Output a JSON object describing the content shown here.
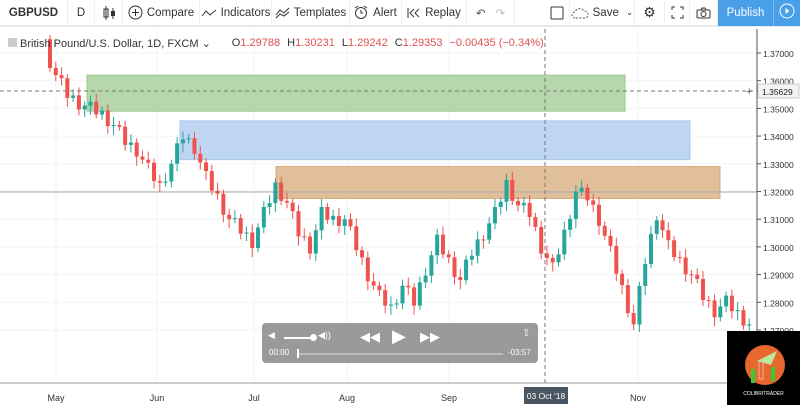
{
  "toolbar": {
    "symbol": "GBPUSD",
    "interval": "D",
    "compare": "Compare",
    "indicators": "Indicators",
    "templates": "Templates",
    "alert": "Alert",
    "replay": "Replay",
    "save": "Save",
    "publish": "Publish"
  },
  "legend": {
    "title": "British Pound/U.S. Dollar, 1D, FXCM",
    "open_label": "O",
    "open": "1.29788",
    "high_label": "H",
    "high": "1.30231",
    "low_label": "L",
    "low": "1.29242",
    "close_label": "C",
    "close": "1.29353",
    "change": "−0.00435 (−0.34%)"
  },
  "price_axis": {
    "ticks": [
      "1.37000",
      "1.36000",
      "1.35000",
      "1.34000",
      "1.33000",
      "1.32000",
      "1.31000",
      "1.30000",
      "1.29000",
      "1.28000",
      "1.27000"
    ],
    "crosshair_price": "1.35629"
  },
  "time_axis": {
    "labels": [
      "May",
      "Jun",
      "Jul",
      "Aug",
      "Sep",
      "Nov"
    ],
    "crosshair_date": "03 Oct '18"
  },
  "zones": [
    {
      "name": "green-zone",
      "top": 1.362,
      "bottom": 1.349,
      "color": "#9cc98f"
    },
    {
      "name": "blue-zone",
      "top": 1.3455,
      "bottom": 1.3315,
      "color": "#a9c8ef"
    },
    {
      "name": "orange-zone",
      "top": 1.329,
      "bottom": 1.3175,
      "color": "#d7a978"
    }
  ],
  "colors": {
    "up": "#26a69a",
    "down": "#ef5350",
    "accent": "#4aa0e8"
  },
  "chart_data": {
    "type": "candlestick",
    "approx_closes": [
      1.372,
      1.362,
      1.355,
      1.352,
      1.35,
      1.348,
      1.344,
      1.338,
      1.335,
      1.328,
      1.322,
      1.33,
      1.34,
      1.336,
      1.325,
      1.318,
      1.31,
      1.306,
      1.302,
      1.312,
      1.322,
      1.316,
      1.305,
      1.3,
      1.312,
      1.31,
      1.31,
      1.3,
      1.29,
      1.282,
      1.278,
      1.286,
      1.28,
      1.292,
      1.302,
      1.295,
      1.288,
      1.298,
      1.305,
      1.312,
      1.323,
      1.315,
      1.312,
      1.3,
      1.292,
      1.305,
      1.32,
      1.318,
      1.31,
      1.298,
      1.285,
      1.272,
      1.295,
      1.312,
      1.3,
      1.295,
      1.29,
      1.282,
      1.277,
      1.28,
      1.276,
      1.272
    ],
    "ylim": [
      1.265,
      1.375
    ]
  },
  "player": {
    "elapsed": "00:00",
    "remaining": "-03:57",
    "volume": 0.85,
    "progress": 0
  },
  "watermark": {
    "text": "COLIBRITRADER"
  }
}
